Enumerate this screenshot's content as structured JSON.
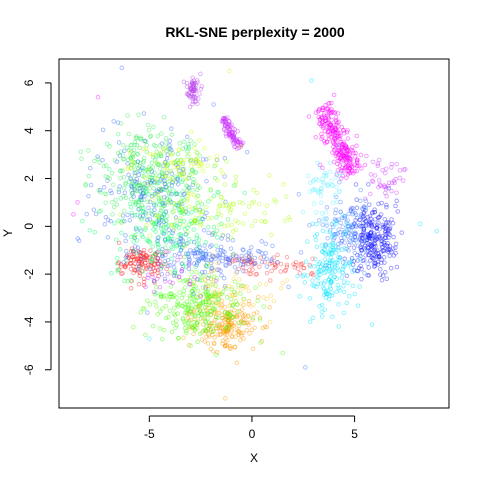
{
  "chart_data": {
    "type": "scatter",
    "title": "RKL-SNE perplexity = 2000",
    "xlabel": "X",
    "ylabel": "Y",
    "xlim": [
      -9.4,
      9.6
    ],
    "ylim": [
      -7.6,
      7.0
    ],
    "xticks": [
      -5,
      0,
      5
    ],
    "yticks": [
      -6,
      -4,
      -2,
      0,
      2,
      4,
      6
    ],
    "marker": "open-circle",
    "alpha": 0.45,
    "grid": false,
    "legend": "none",
    "clusters": [
      {
        "color": "#FF00FF",
        "center": [
          4.2,
          3.6
        ],
        "spread": [
          0.5,
          0.55
        ],
        "count": 260,
        "shape": "band",
        "dir": [
          0.45,
          -0.89
        ],
        "length": 3.2
      },
      {
        "color": "#CC33FF",
        "center": [
          -1.0,
          3.9
        ],
        "spread": [
          0.18,
          0.18
        ],
        "count": 90,
        "shape": "band",
        "dir": [
          0.55,
          -0.83
        ],
        "length": 1.5
      },
      {
        "color": "#BB44EE",
        "center": [
          -2.85,
          5.75
        ],
        "spread": [
          0.2,
          0.3
        ],
        "count": 60
      },
      {
        "color": "#CC33FF",
        "center": [
          6.5,
          2.0
        ],
        "spread": [
          0.5,
          0.4
        ],
        "count": 40
      },
      {
        "color": "#2020FF",
        "center": [
          5.9,
          -0.5
        ],
        "spread": [
          0.55,
          0.75
        ],
        "count": 260
      },
      {
        "color": "#3A7BFF",
        "center": [
          4.6,
          -0.2
        ],
        "spread": [
          0.6,
          0.7
        ],
        "count": 110
      },
      {
        "color": "#00E5FF",
        "center": [
          3.8,
          -1.9
        ],
        "spread": [
          0.6,
          0.9
        ],
        "count": 170
      },
      {
        "color": "#66F0FF",
        "center": [
          3.6,
          1.6
        ],
        "spread": [
          0.5,
          0.8
        ],
        "count": 60
      },
      {
        "color": "#FF2020",
        "center": [
          -5.4,
          -1.5
        ],
        "spread": [
          0.6,
          0.35
        ],
        "count": 120
      },
      {
        "color": "#FF3B3B",
        "center": [
          0.8,
          -1.6
        ],
        "spread": [
          1.3,
          0.25
        ],
        "count": 70
      },
      {
        "color": "#FF9900",
        "center": [
          -1.2,
          -4.1
        ],
        "spread": [
          0.8,
          0.5
        ],
        "count": 200
      },
      {
        "color": "#44FF00",
        "center": [
          -2.6,
          -3.3
        ],
        "spread": [
          1.2,
          0.7
        ],
        "count": 260
      },
      {
        "color": "#33EE55",
        "center": [
          -4.9,
          2.1
        ],
        "spread": [
          1.3,
          1.0
        ],
        "count": 300
      },
      {
        "color": "#00FF66",
        "center": [
          -4.2,
          0.0
        ],
        "spread": [
          1.4,
          1.2
        ],
        "count": 220
      },
      {
        "color": "#3B6BFF",
        "center": [
          -4.6,
          1.2
        ],
        "spread": [
          1.5,
          1.5
        ],
        "count": 200
      },
      {
        "color": "#3B6BFF",
        "center": [
          -1.8,
          -1.3
        ],
        "spread": [
          1.5,
          0.4
        ],
        "count": 150
      },
      {
        "color": "#AAFF00",
        "center": [
          -2.0,
          0.6
        ],
        "spread": [
          1.8,
          0.7
        ],
        "count": 120
      },
      {
        "color": "#C8FF00",
        "center": [
          -3.6,
          2.6
        ],
        "spread": [
          1.2,
          0.6
        ],
        "count": 80
      },
      {
        "color": "#FFCC33",
        "center": [
          -1.0,
          -2.7
        ],
        "spread": [
          1.2,
          0.6
        ],
        "count": 60
      },
      {
        "color": "#CC33FF",
        "center": [
          -3.8,
          -2.1
        ],
        "spread": [
          0.8,
          0.4
        ],
        "count": 30
      }
    ],
    "outliers": [
      {
        "x": -8.7,
        "y": 0.5,
        "color": "#FF00FF"
      },
      {
        "x": -8.5,
        "y": 1.0,
        "color": "#FF00FF"
      },
      {
        "x": -1.3,
        "y": -7.2,
        "color": "#FF9900"
      },
      {
        "x": 2.6,
        "y": -5.9,
        "color": "#3A7BFF"
      },
      {
        "x": 9.0,
        "y": -0.2,
        "color": "#00E5FF"
      },
      {
        "x": 8.2,
        "y": 0.1,
        "color": "#00E5FF"
      },
      {
        "x": -1.1,
        "y": 6.5,
        "color": "#C8FF00"
      },
      {
        "x": 2.9,
        "y": 6.1,
        "color": "#00E5FF"
      },
      {
        "x": 4.0,
        "y": 5.5,
        "color": "#FF00FF"
      },
      {
        "x": -7.5,
        "y": 5.4,
        "color": "#FF00FF"
      },
      {
        "x": -5.0,
        "y": -4.7,
        "color": "#00E5FF"
      },
      {
        "x": 1.5,
        "y": -5.3,
        "color": "#44FF00"
      }
    ]
  }
}
